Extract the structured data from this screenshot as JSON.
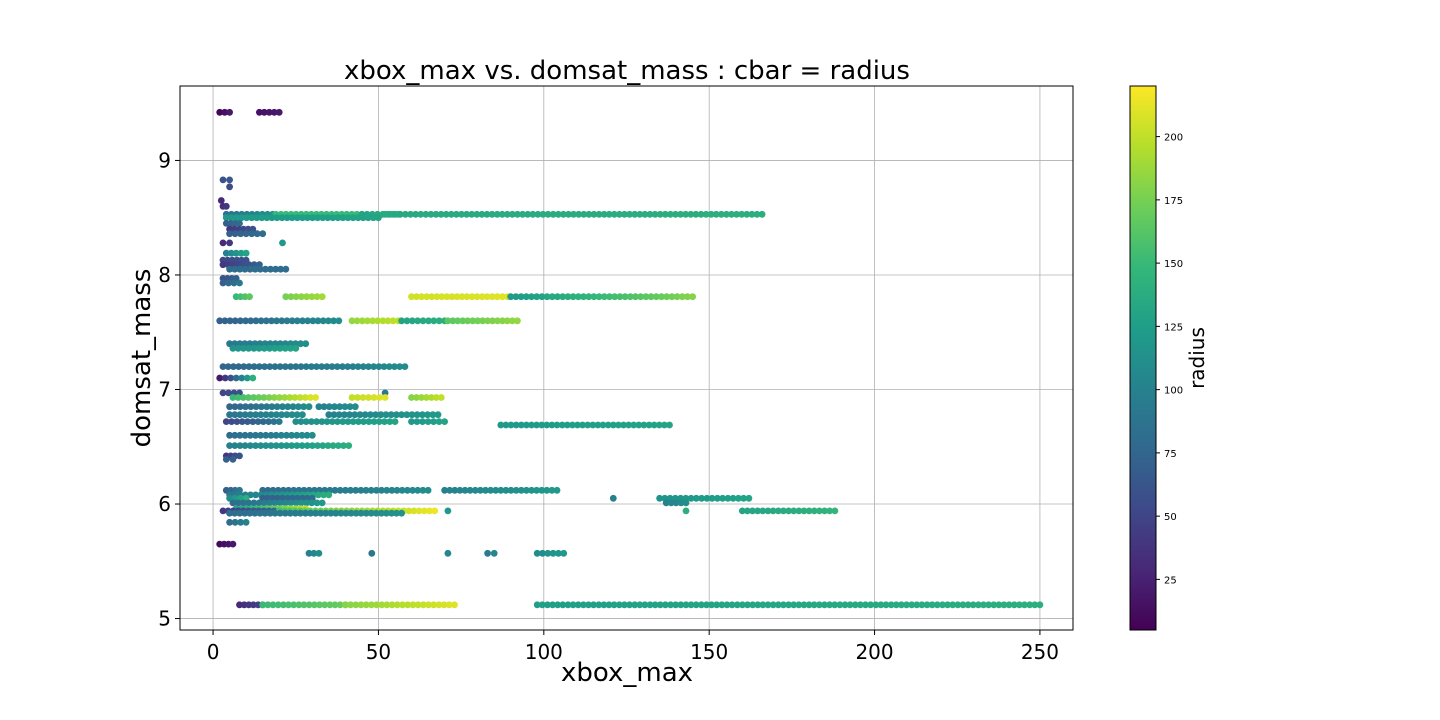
{
  "chart_data": {
    "type": "scatter",
    "title": "xbox_max vs. domsat_mass : cbar = radius",
    "xlabel": "xbox_max",
    "ylabel": "domsat_mass",
    "xlim": [
      -10,
      260
    ],
    "ylim": [
      4.9,
      9.65
    ],
    "xticks": [
      0,
      50,
      100,
      150,
      200,
      250
    ],
    "yticks": [
      5,
      6,
      7,
      8,
      9
    ],
    "grid": true,
    "colorbar": {
      "label": "radius",
      "colormap": "viridis",
      "range": [
        5,
        220
      ],
      "ticks": [
        25,
        50,
        75,
        100,
        125,
        150,
        175,
        200
      ]
    },
    "colormap_stops": [
      "#440154",
      "#482878",
      "#3e4989",
      "#31688e",
      "#26828e",
      "#1f9e89",
      "#35b779",
      "#6ece58",
      "#b5de2b",
      "#fde725"
    ],
    "rows": [
      {
        "y": 9.42,
        "segments": [
          [
            2,
            5,
            8,
            20
          ],
          [
            14,
            20,
            15,
            20
          ]
        ]
      },
      {
        "y": 8.83,
        "segments": [
          [
            3,
            5,
            60,
            65
          ]
        ]
      },
      {
        "y": 8.77,
        "segments": [
          [
            5,
            5,
            55,
            55
          ]
        ]
      },
      {
        "y": 8.65,
        "segments": [
          [
            2.5,
            2.5,
            30,
            30
          ]
        ]
      },
      {
        "y": 8.6,
        "segments": [
          [
            3,
            4,
            35,
            40
          ]
        ]
      },
      {
        "y": 8.53,
        "segments": [
          [
            4,
            18,
            85,
            115
          ],
          [
            19,
            45,
            150,
            150
          ],
          [
            45,
            56,
            130,
            140
          ],
          [
            52,
            166,
            135,
            140
          ]
        ]
      },
      {
        "y": 8.5,
        "segments": [
          [
            4,
            50,
            120,
            130
          ]
        ]
      },
      {
        "y": 8.45,
        "segments": [
          [
            4,
            8,
            70,
            80
          ]
        ]
      },
      {
        "y": 8.4,
        "segments": [
          [
            5,
            12,
            40,
            60
          ]
        ]
      },
      {
        "y": 8.36,
        "segments": [
          [
            5,
            15,
            70,
            80
          ]
        ]
      },
      {
        "y": 8.28,
        "segments": [
          [
            3,
            5,
            30,
            40
          ],
          [
            21,
            21,
            120,
            120
          ]
        ]
      },
      {
        "y": 8.19,
        "segments": [
          [
            4,
            10,
            100,
            130
          ]
        ]
      },
      {
        "y": 8.13,
        "segments": [
          [
            3,
            10,
            50,
            60
          ]
        ]
      },
      {
        "y": 8.09,
        "segments": [
          [
            3,
            14,
            40,
            70
          ]
        ]
      },
      {
        "y": 8.05,
        "segments": [
          [
            5,
            22,
            80,
            80
          ]
        ]
      },
      {
        "y": 7.97,
        "segments": [
          [
            3,
            7,
            60,
            70
          ]
        ]
      },
      {
        "y": 7.93,
        "segments": [
          [
            3,
            8,
            70,
            90
          ]
        ]
      },
      {
        "y": 7.81,
        "segments": [
          [
            7,
            11,
            150,
            165
          ],
          [
            22,
            33,
            175,
            190
          ],
          [
            60,
            89,
            205,
            210
          ],
          [
            90,
            145,
            120,
            180
          ]
        ]
      },
      {
        "y": 7.6,
        "segments": [
          [
            2,
            38,
            70,
            110
          ],
          [
            42,
            56,
            185,
            200
          ],
          [
            57,
            70,
            130,
            140
          ],
          [
            71,
            92,
            165,
            185
          ]
        ]
      },
      {
        "y": 7.4,
        "segments": [
          [
            5,
            28,
            90,
            110
          ]
        ]
      },
      {
        "y": 7.36,
        "segments": [
          [
            6,
            25,
            115,
            130
          ]
        ]
      },
      {
        "y": 7.2,
        "segments": [
          [
            3,
            58,
            75,
            110
          ]
        ]
      },
      {
        "y": 7.1,
        "segments": [
          [
            2,
            12,
            20,
            140
          ]
        ]
      },
      {
        "y": 6.97,
        "segments": [
          [
            3,
            8,
            50,
            60
          ],
          [
            52,
            52,
            90,
            90
          ]
        ]
      },
      {
        "y": 6.93,
        "segments": [
          [
            6,
            31,
            150,
            210
          ],
          [
            42,
            52,
            200,
            210
          ],
          [
            60,
            69,
            180,
            200
          ]
        ]
      },
      {
        "y": 6.85,
        "segments": [
          [
            5,
            29,
            75,
            110
          ],
          [
            32,
            43,
            100,
            110
          ]
        ]
      },
      {
        "y": 6.78,
        "segments": [
          [
            5,
            27,
            90,
            110
          ],
          [
            35,
            68,
            100,
            120
          ]
        ]
      },
      {
        "y": 6.72,
        "segments": [
          [
            4,
            20,
            50,
            90
          ],
          [
            25,
            55,
            110,
            130
          ],
          [
            60,
            70,
            120,
            130
          ]
        ]
      },
      {
        "y": 6.69,
        "segments": [
          [
            87,
            138,
            120,
            130
          ]
        ]
      },
      {
        "y": 6.6,
        "segments": [
          [
            5,
            30,
            80,
            110
          ]
        ]
      },
      {
        "y": 6.51,
        "segments": [
          [
            5,
            41,
            100,
            140
          ]
        ]
      },
      {
        "y": 6.42,
        "segments": [
          [
            4,
            8,
            40,
            60
          ]
        ]
      },
      {
        "y": 6.39,
        "segments": [
          [
            4,
            6,
            70,
            70
          ]
        ]
      },
      {
        "y": 6.12,
        "segments": [
          [
            4,
            8,
            70,
            90
          ],
          [
            15,
            65,
            80,
            110
          ],
          [
            70,
            104,
            100,
            120
          ]
        ]
      },
      {
        "y": 6.08,
        "segments": [
          [
            5,
            35,
            90,
            140
          ]
        ]
      },
      {
        "y": 6.05,
        "segments": [
          [
            5,
            10,
            110,
            140
          ],
          [
            15,
            30,
            70,
            80
          ],
          [
            121,
            121,
            100,
            100
          ],
          [
            135,
            162,
            115,
            130
          ]
        ]
      },
      {
        "y": 6.01,
        "segments": [
          [
            6,
            33,
            80,
            120
          ],
          [
            137,
            143,
            100,
            110
          ]
        ]
      },
      {
        "y": 5.96,
        "segments": [
          [
            7,
            28,
            130,
            200
          ]
        ]
      },
      {
        "y": 5.94,
        "segments": [
          [
            3,
            20,
            40,
            80
          ],
          [
            20,
            67,
            155,
            215
          ],
          [
            71,
            71,
            120,
            120
          ],
          [
            143,
            143,
            140,
            140
          ],
          [
            160,
            188,
            130,
            145
          ]
        ]
      },
      {
        "y": 5.92,
        "segments": [
          [
            5,
            57,
            80,
            115
          ]
        ]
      },
      {
        "y": 5.84,
        "segments": [
          [
            5,
            10,
            80,
            100
          ]
        ]
      },
      {
        "y": 5.65,
        "segments": [
          [
            2,
            6,
            10,
            20
          ]
        ]
      },
      {
        "y": 5.57,
        "segments": [
          [
            29,
            32,
            100,
            110
          ],
          [
            48,
            48,
            90,
            90
          ],
          [
            71,
            71,
            105,
            105
          ],
          [
            83,
            85,
            95,
            105
          ],
          [
            98,
            106,
            110,
            120
          ]
        ]
      },
      {
        "y": 5.12,
        "segments": [
          [
            8,
            15,
            30,
            50
          ],
          [
            15,
            40,
            150,
            170
          ],
          [
            40,
            73,
            180,
            210
          ],
          [
            98,
            250,
            125,
            140
          ]
        ]
      }
    ]
  }
}
